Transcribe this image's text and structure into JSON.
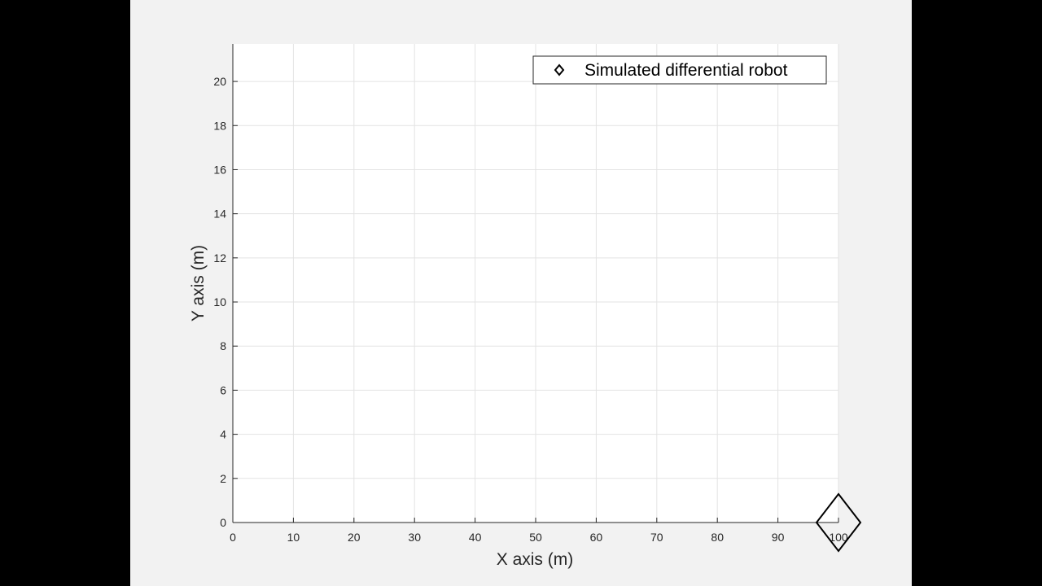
{
  "chart_data": {
    "type": "scatter",
    "title": "",
    "xlabel": "X axis (m)",
    "ylabel": "Y axis (m)",
    "xlim": [
      0,
      100
    ],
    "ylim": [
      0,
      21.7
    ],
    "xticks": [
      0,
      10,
      20,
      30,
      40,
      50,
      60,
      70,
      80,
      90,
      100
    ],
    "yticks": [
      0,
      2,
      4,
      6,
      8,
      10,
      12,
      14,
      16,
      18,
      20
    ],
    "grid": true,
    "legend_position": "top-right",
    "series": [
      {
        "name": "Simulated differential robot",
        "marker": "diamond",
        "color": "#000000",
        "points": [
          {
            "x": 100,
            "y": 0
          }
        ]
      }
    ]
  }
}
